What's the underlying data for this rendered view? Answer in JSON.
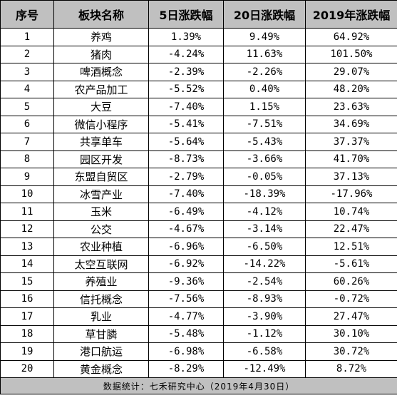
{
  "header": {
    "index": "序号",
    "sector": "板块名称",
    "change_5d": "5日涨跌幅",
    "change_20d": "20日涨跌幅",
    "change_ytd": "2019年涨跌幅"
  },
  "rows": [
    {
      "index": "1",
      "sector": "养鸡",
      "change_5d": "1.39%",
      "change_20d": "9.49%",
      "change_ytd": "64.92%"
    },
    {
      "index": "2",
      "sector": "猪肉",
      "change_5d": "-4.24%",
      "change_20d": "11.63%",
      "change_ytd": "101.50%"
    },
    {
      "index": "3",
      "sector": "啤酒概念",
      "change_5d": "-2.39%",
      "change_20d": "-2.26%",
      "change_ytd": "29.07%"
    },
    {
      "index": "4",
      "sector": "农产品加工",
      "change_5d": "-5.52%",
      "change_20d": "0.40%",
      "change_ytd": "48.20%"
    },
    {
      "index": "5",
      "sector": "大豆",
      "change_5d": "-7.40%",
      "change_20d": "1.15%",
      "change_ytd": "23.63%"
    },
    {
      "index": "6",
      "sector": "微信小程序",
      "change_5d": "-5.41%",
      "change_20d": "-7.51%",
      "change_ytd": "34.69%"
    },
    {
      "index": "7",
      "sector": "共享单车",
      "change_5d": "-5.64%",
      "change_20d": "-5.43%",
      "change_ytd": "37.37%"
    },
    {
      "index": "8",
      "sector": "园区开发",
      "change_5d": "-8.73%",
      "change_20d": "-3.66%",
      "change_ytd": "41.70%"
    },
    {
      "index": "9",
      "sector": "东盟自贸区",
      "change_5d": "-2.79%",
      "change_20d": "-0.05%",
      "change_ytd": "37.13%"
    },
    {
      "index": "10",
      "sector": "冰雪产业",
      "change_5d": "-7.40%",
      "change_20d": "-18.39%",
      "change_ytd": "-17.96%"
    },
    {
      "index": "11",
      "sector": "玉米",
      "change_5d": "-6.49%",
      "change_20d": "-4.12%",
      "change_ytd": "10.74%"
    },
    {
      "index": "12",
      "sector": "公交",
      "change_5d": "-4.67%",
      "change_20d": "-3.14%",
      "change_ytd": "22.47%"
    },
    {
      "index": "13",
      "sector": "农业种植",
      "change_5d": "-6.96%",
      "change_20d": "-6.50%",
      "change_ytd": "12.51%"
    },
    {
      "index": "14",
      "sector": "太空互联网",
      "change_5d": "-6.92%",
      "change_20d": "-14.22%",
      "change_ytd": "-5.61%"
    },
    {
      "index": "15",
      "sector": "养殖业",
      "change_5d": "-9.36%",
      "change_20d": "-2.54%",
      "change_ytd": "60.26%"
    },
    {
      "index": "16",
      "sector": "信托概念",
      "change_5d": "-7.56%",
      "change_20d": "-8.93%",
      "change_ytd": "-0.72%"
    },
    {
      "index": "17",
      "sector": "乳业",
      "change_5d": "-4.77%",
      "change_20d": "-3.90%",
      "change_ytd": "27.47%"
    },
    {
      "index": "18",
      "sector": "草甘膦",
      "change_5d": "-5.48%",
      "change_20d": "-1.12%",
      "change_ytd": "30.10%"
    },
    {
      "index": "19",
      "sector": "港口航运",
      "change_5d": "-6.98%",
      "change_20d": "-6.58%",
      "change_ytd": "30.72%"
    },
    {
      "index": "20",
      "sector": "黄金概念",
      "change_5d": "-8.29%",
      "change_20d": "-12.49%",
      "change_ytd": "8.72%"
    }
  ],
  "footer": {
    "note": "数据统计：七禾研究中心（2019年4月30日）"
  },
  "colors": {
    "header_bg": "#c0c0c0",
    "footer_bg": "#c0c0c0",
    "border": "#000000"
  }
}
